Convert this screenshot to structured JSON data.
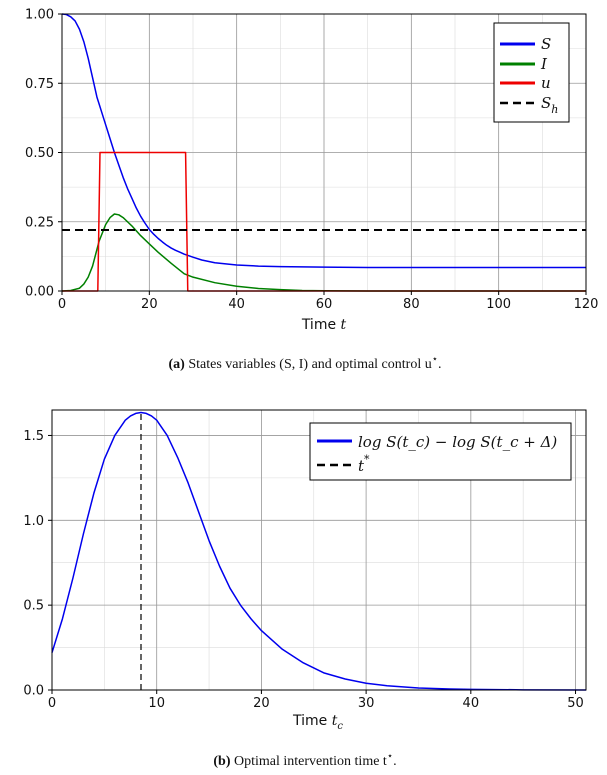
{
  "chart_data": [
    {
      "type": "line",
      "panel": "a",
      "xlabel": "Time",
      "xlabel_var": "t",
      "xlim": [
        0,
        120
      ],
      "ylim": [
        0,
        1
      ],
      "xticks": [
        0,
        20,
        40,
        60,
        80,
        100,
        120
      ],
      "yticks": [
        0.0,
        0.25,
        0.5,
        0.75,
        1.0
      ],
      "xtick_labels": [
        "0",
        "20",
        "40",
        "60",
        "80",
        "100",
        "120"
      ],
      "ytick_labels": [
        "0.00",
        "0.25",
        "0.50",
        "0.75",
        "1.00"
      ],
      "grid": true,
      "legend_position": "top-right",
      "series": [
        {
          "name": "S",
          "color": "#0000ee",
          "style": "solid",
          "x": [
            0,
            1,
            2,
            3,
            4,
            5,
            6,
            7,
            8,
            8.5,
            9,
            10,
            11,
            12,
            13,
            14,
            15,
            16,
            17,
            18,
            19,
            20,
            21,
            22,
            23,
            24,
            25,
            26,
            27,
            28,
            30,
            32,
            35,
            40,
            45,
            50,
            60,
            70,
            80,
            100,
            120
          ],
          "y": [
            1.0,
            0.998,
            0.99,
            0.975,
            0.945,
            0.9,
            0.84,
            0.77,
            0.7,
            0.675,
            0.65,
            0.6,
            0.55,
            0.5,
            0.455,
            0.41,
            0.37,
            0.335,
            0.3,
            0.27,
            0.245,
            0.222,
            0.205,
            0.19,
            0.177,
            0.165,
            0.155,
            0.147,
            0.14,
            0.133,
            0.122,
            0.112,
            0.102,
            0.094,
            0.09,
            0.088,
            0.086,
            0.085,
            0.085,
            0.085,
            0.085
          ]
        },
        {
          "name": "I",
          "color": "#008000",
          "style": "solid",
          "x": [
            0,
            2,
            4,
            5,
            6,
            7,
            8,
            8.5,
            9,
            10,
            11,
            12,
            13,
            14,
            15,
            16,
            18,
            20,
            22,
            25,
            28,
            30,
            35,
            40,
            45,
            50,
            55,
            60,
            70,
            80,
            100,
            120
          ],
          "y": [
            0.0,
            0.002,
            0.01,
            0.025,
            0.05,
            0.09,
            0.15,
            0.18,
            0.2,
            0.24,
            0.265,
            0.278,
            0.275,
            0.265,
            0.25,
            0.235,
            0.2,
            0.17,
            0.14,
            0.1,
            0.062,
            0.05,
            0.03,
            0.017,
            0.009,
            0.005,
            0.002,
            0.001,
            0.0,
            0.0,
            0.0,
            0.0
          ]
        },
        {
          "name": "u",
          "color": "#ee0000",
          "style": "solid",
          "x": [
            0,
            8.2,
            8.7,
            28.3,
            28.8,
            120
          ],
          "y": [
            0,
            0,
            0.5,
            0.5,
            0,
            0
          ]
        },
        {
          "name": "S_h",
          "color": "#000000",
          "style": "dashed",
          "x": [
            0,
            120
          ],
          "y": [
            0.22,
            0.22
          ]
        }
      ],
      "legend": [
        {
          "label": "S"
        },
        {
          "label": "I"
        },
        {
          "label": "u"
        },
        {
          "label": "S",
          "sub": "h"
        }
      ],
      "caption_label": "(a)",
      "caption_text": "States variables (S, I) and optimal control u",
      "caption_star": "⋆",
      "caption_end": "."
    },
    {
      "type": "line",
      "panel": "b",
      "xlabel": "Time",
      "xlabel_var": "t",
      "xlabel_sub": "c",
      "xlim": [
        0,
        51
      ],
      "ylim": [
        0,
        1.65
      ],
      "xticks": [
        0,
        10,
        20,
        30,
        40,
        50
      ],
      "yticks": [
        0.0,
        0.5,
        1.0,
        1.5
      ],
      "xtick_labels": [
        "0",
        "10",
        "20",
        "30",
        "40",
        "50"
      ],
      "ytick_labels": [
        "0.0",
        "0.5",
        "1.0",
        "1.5"
      ],
      "grid": true,
      "legend_position": "top-right",
      "series": [
        {
          "name": "log S(t_c) − log S(t_c + Δ)",
          "color": "#0000ee",
          "style": "solid",
          "x": [
            0,
            1,
            2,
            3,
            4,
            5,
            6,
            7,
            7.5,
            8,
            8.5,
            9,
            9.5,
            10,
            11,
            12,
            13,
            14,
            15,
            16,
            17,
            18,
            19,
            20,
            22,
            24,
            26,
            28,
            30,
            32,
            35,
            38,
            40,
            45,
            51
          ],
          "y": [
            0.22,
            0.42,
            0.66,
            0.92,
            1.16,
            1.36,
            1.5,
            1.59,
            1.615,
            1.63,
            1.635,
            1.63,
            1.615,
            1.59,
            1.5,
            1.37,
            1.22,
            1.05,
            0.88,
            0.73,
            0.6,
            0.5,
            0.42,
            0.35,
            0.24,
            0.16,
            0.1,
            0.065,
            0.04,
            0.025,
            0.012,
            0.006,
            0.004,
            0.001,
            0.0
          ]
        },
        {
          "name": "t*",
          "color": "#000000",
          "style": "dashed",
          "x": [
            8.5,
            8.5
          ],
          "y": [
            0,
            1.635
          ]
        }
      ],
      "legend": [
        {
          "label": "log S(t_c) − log S(t_c + Δ)"
        },
        {
          "label": "t",
          "sup": "*"
        }
      ],
      "caption_label": "(b)",
      "caption_text": "Optimal intervention time t",
      "caption_star": "⋆",
      "caption_end": "."
    }
  ]
}
